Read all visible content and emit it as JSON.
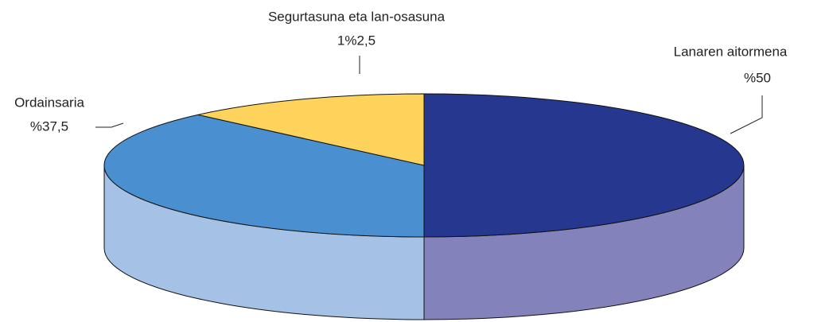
{
  "chart_data": {
    "type": "pie",
    "categories": [
      "Lanaren aitormena",
      "Ordainsaria",
      "Segurtasuna eta lan-osasuna"
    ],
    "values": [
      50,
      37.5,
      12.5
    ],
    "value_labels": [
      "%50",
      "%37,5",
      "1%2,5"
    ],
    "colors": [
      "#25378e",
      "#4a8fcf",
      "#fdd35b"
    ],
    "side_colors": [
      "#8482bb",
      "#a5c1e5",
      "#d9b64a"
    ]
  }
}
